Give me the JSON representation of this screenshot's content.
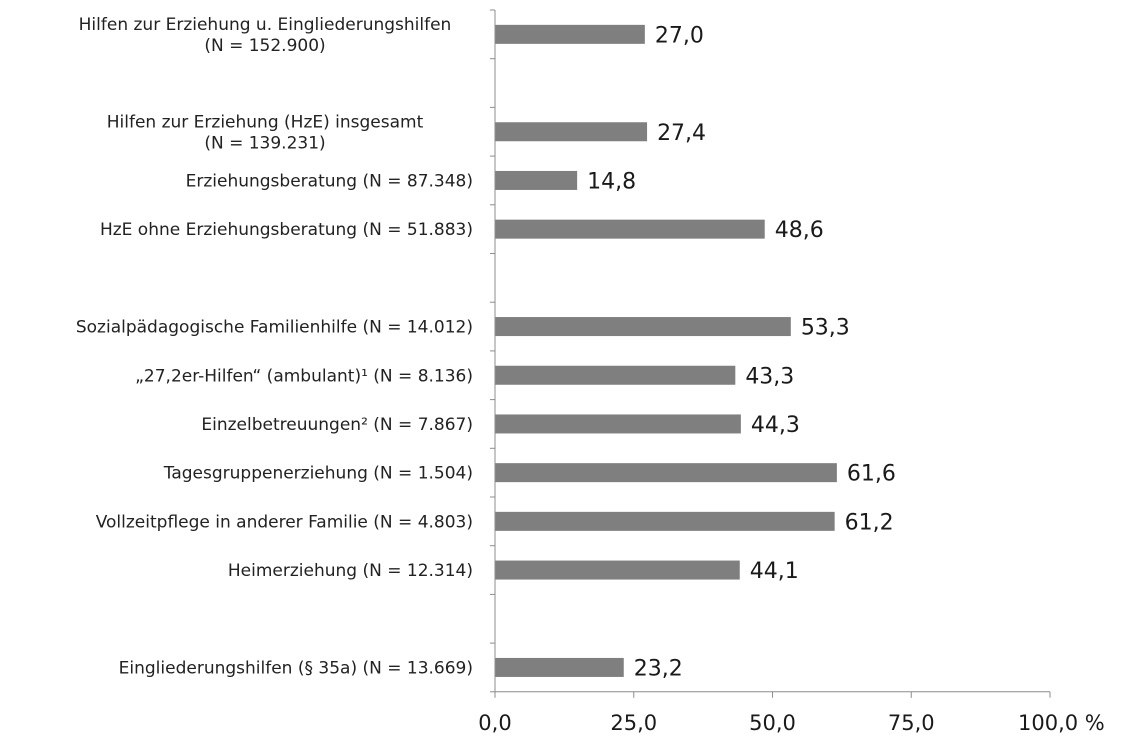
{
  "chart_data": {
    "type": "bar",
    "orientation": "horizontal",
    "xlim": [
      0,
      100
    ],
    "x_ticks": [
      "0,0",
      "25,0",
      "50,0",
      "75,0",
      "100,0 %"
    ],
    "x_tick_values": [
      0,
      25,
      50,
      75,
      100
    ],
    "grid": false,
    "legend": "none",
    "bar_color": "#7f7f7f",
    "categories": [
      [
        "Hilfen zur Erziehung u. Eingliederungshilfen",
        "(N = 152.900)"
      ],
      null,
      [
        "Hilfen zur Erziehung (HzE) insgesamt",
        "(N = 139.231)"
      ],
      [
        "Erziehungsberatung (N = 87.348)"
      ],
      [
        "HzE ohne Erziehungsberatung (N = 51.883)"
      ],
      null,
      [
        "Sozialpädagogische Familienhilfe (N = 14.012)"
      ],
      [
        "„27,2er-Hilfen“ (ambulant)¹ (N = 8.136)"
      ],
      [
        "Einzelbetreuungen² (N = 7.867)"
      ],
      [
        "Tagesgruppenerziehung (N = 1.504)"
      ],
      [
        "Vollzeitpflege in anderer Familie (N = 4.803)"
      ],
      [
        "Heimerziehung (N = 12.314)"
      ],
      null,
      [
        "Eingliederungshilfen (§ 35a) (N = 13.669)"
      ]
    ],
    "values": [
      27.0,
      null,
      27.4,
      14.8,
      48.6,
      null,
      53.3,
      43.3,
      44.3,
      61.6,
      61.2,
      44.1,
      null,
      23.2
    ],
    "value_labels": [
      "27,0",
      null,
      "27,4",
      "14,8",
      "48,6",
      null,
      "53,3",
      "43,3",
      "44,3",
      "61,6",
      "61,2",
      "44,1",
      null,
      "23,2"
    ]
  }
}
